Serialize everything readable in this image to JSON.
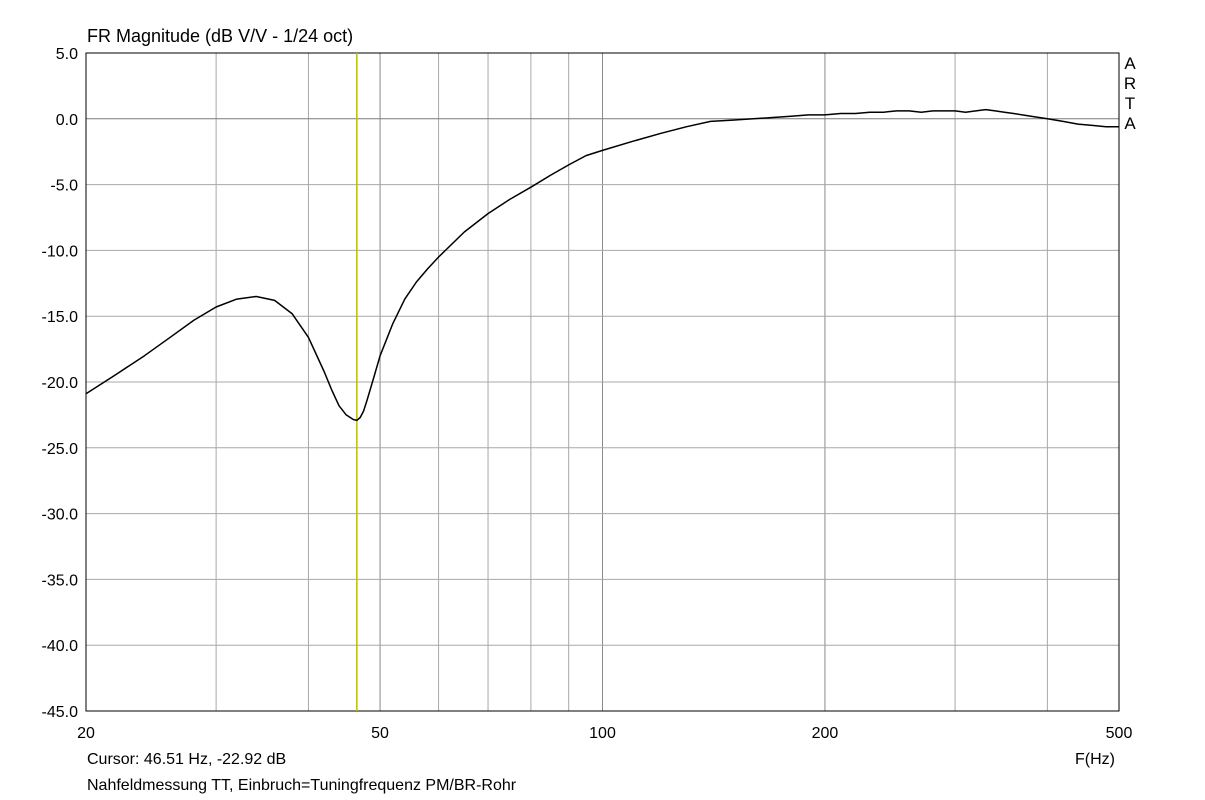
{
  "title": "FR Magnitude (dB V/V - 1/24 oct)",
  "cursor_text": "Cursor: 46.51 Hz, -22.92 dB",
  "note": "Nahfeldmessung TT, Einbruch=Tuningfrequenz PM/BR-Rohr",
  "watermark": "ARTA",
  "colors": {
    "curve": "#000000",
    "cursor": "#b8c000",
    "grid": "#a8a8a8",
    "axis": "#000000"
  },
  "chart_data": {
    "type": "line",
    "title": "FR Magnitude (dB V/V - 1/24 oct)",
    "xlabel": "F(Hz)",
    "ylabel": "",
    "xscale": "log",
    "xlim": [
      20,
      500
    ],
    "ylim": [
      -45,
      5
    ],
    "x_ticks": [
      20,
      50,
      100,
      200,
      500
    ],
    "x_tick_labels": [
      "20",
      "50",
      "100",
      "200",
      "500"
    ],
    "y_ticks": [
      5,
      0,
      -5,
      -10,
      -15,
      -20,
      -25,
      -30,
      -35,
      -40,
      -45
    ],
    "y_tick_labels": [
      "5.0",
      "0.0",
      "-5.0",
      "-10.0",
      "-15.0",
      "-20.0",
      "-25.0",
      "-30.0",
      "-35.0",
      "-40.0",
      "-45.0"
    ],
    "grid": true,
    "cursor": {
      "x": 46.51,
      "y": -22.92
    },
    "series": [
      {
        "x": [
          20,
          22,
          24,
          26,
          28,
          30,
          32,
          34,
          36,
          38,
          40,
          42,
          43,
          44,
          45,
          46,
          46.5,
          47,
          47.5,
          48,
          49,
          50,
          52,
          54,
          56,
          58,
          60,
          65,
          70,
          75,
          80,
          85,
          90,
          95,
          100,
          110,
          120,
          130,
          140,
          150,
          160,
          170,
          180,
          190,
          200,
          210,
          220,
          230,
          240,
          250,
          260,
          270,
          280,
          290,
          300,
          310,
          320,
          330,
          340,
          350,
          360,
          380,
          400,
          420,
          440,
          460,
          480,
          500
        ],
        "y": [
          -20.9,
          -19.4,
          -18.0,
          -16.6,
          -15.3,
          -14.3,
          -13.7,
          -13.5,
          -13.8,
          -14.8,
          -16.6,
          -19.2,
          -20.6,
          -21.8,
          -22.5,
          -22.85,
          -22.92,
          -22.7,
          -22.2,
          -21.4,
          -19.7,
          -18.0,
          -15.6,
          -13.7,
          -12.4,
          -11.4,
          -10.5,
          -8.6,
          -7.2,
          -6.1,
          -5.2,
          -4.3,
          -3.5,
          -2.8,
          -2.4,
          -1.7,
          -1.1,
          -0.6,
          -0.2,
          -0.1,
          0.0,
          0.1,
          0.2,
          0.3,
          0.3,
          0.4,
          0.4,
          0.5,
          0.5,
          0.6,
          0.6,
          0.5,
          0.6,
          0.6,
          0.6,
          0.5,
          0.6,
          0.7,
          0.6,
          0.5,
          0.4,
          0.2,
          0.0,
          -0.2,
          -0.4,
          -0.5,
          -0.6,
          -0.6
        ]
      }
    ]
  }
}
